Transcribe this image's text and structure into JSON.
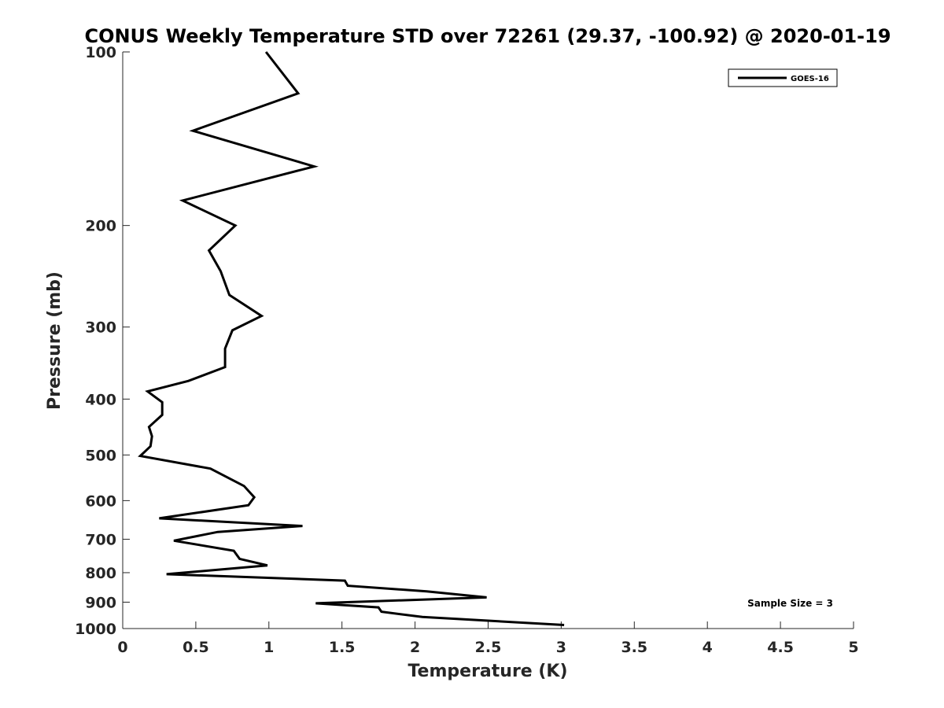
{
  "chart_data": {
    "type": "line",
    "title": "CONUS Weekly Temperature STD over 72261 (29.37, -100.92) @ 2020-01-19",
    "xlabel": "Temperature (K)",
    "ylabel": "Pressure (mb)",
    "xlim": [
      0,
      5
    ],
    "ylim": [
      100,
      1000
    ],
    "y_scale": "log",
    "y_reversed": true,
    "x_ticks": [
      "0",
      "0.5",
      "1",
      "1.5",
      "2",
      "2.5",
      "3",
      "3.5",
      "4",
      "4.5",
      "5"
    ],
    "x_tick_values": [
      0,
      0.5,
      1,
      1.5,
      2,
      2.5,
      3,
      3.5,
      4,
      4.5,
      5
    ],
    "y_ticks": [
      "100",
      "200",
      "300",
      "400",
      "500",
      "600",
      "700",
      "800",
      "900",
      "1000"
    ],
    "y_tick_values": [
      100,
      200,
      300,
      400,
      500,
      600,
      700,
      800,
      900,
      1000
    ],
    "grid": false,
    "legend_position": "top-right",
    "series": [
      {
        "name": "GOES-16",
        "color": "#000000",
        "x": [
          0.98,
          1.2,
          0.48,
          1.31,
          0.41,
          0.77,
          0.59,
          0.67,
          0.73,
          0.95,
          0.75,
          0.7,
          0.7,
          0.45,
          0.17,
          0.27,
          0.27,
          0.18,
          0.2,
          0.19,
          0.12,
          0.6,
          0.83,
          0.9,
          0.86,
          0.25,
          1.23,
          0.65,
          0.35,
          0.76,
          0.8,
          0.99,
          0.3,
          1.52,
          1.54,
          2.08,
          2.49,
          1.32,
          1.75,
          1.77,
          2.05,
          3.02
        ],
        "y": [
          100,
          118,
          137,
          158,
          181,
          200,
          221,
          240,
          264,
          287,
          304,
          327,
          352,
          372,
          388,
          405,
          426,
          447,
          464,
          483,
          502,
          528,
          566,
          592,
          611,
          644,
          664,
          680,
          704,
          733,
          757,
          777,
          805,
          826,
          843,
          862,
          883,
          904,
          919,
          935,
          955,
          986
        ]
      }
    ],
    "annotations": [
      "Sample Size = 3"
    ]
  }
}
